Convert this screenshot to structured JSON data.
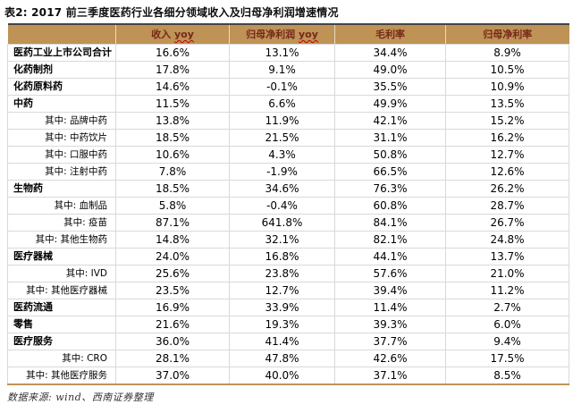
{
  "title": "表2: 2017 前三季度医药行业各细分领域收入及归母净利润增速情况",
  "footer": "数据来源: wind、西南证券整理",
  "colors": {
    "header_bg": "#BE9355",
    "header_text": "#76281A",
    "squiggle_underline": "#C00000",
    "grid_line": "#D9D9D9",
    "table_top_rule": "#454545",
    "table_bottom_rule": "#BF9355"
  },
  "table": {
    "headers": [
      {
        "text": "",
        "suffix": ""
      },
      {
        "text": "收入",
        "suffix": "yoy"
      },
      {
        "text": "归母净利润",
        "suffix": "yoy"
      },
      {
        "text": "毛利率",
        "suffix": ""
      },
      {
        "text": "归母净利率",
        "suffix": ""
      }
    ],
    "rows": [
      {
        "label": "医药工业上市公司合计",
        "sub": false,
        "values": [
          "16.6%",
          "13.1%",
          "34.4%",
          "8.9%"
        ]
      },
      {
        "label": "化药制剂",
        "sub": false,
        "values": [
          "17.8%",
          "9.1%",
          "49.0%",
          "10.5%"
        ]
      },
      {
        "label": "化药原料药",
        "sub": false,
        "values": [
          "14.6%",
          "-0.1%",
          "35.5%",
          "10.9%"
        ]
      },
      {
        "label": "中药",
        "sub": false,
        "values": [
          "11.5%",
          "6.6%",
          "49.9%",
          "13.5%"
        ]
      },
      {
        "label": "其中: 品牌中药",
        "sub": true,
        "values": [
          "13.8%",
          "11.9%",
          "42.1%",
          "15.2%"
        ]
      },
      {
        "label": "其中: 中药饮片",
        "sub": true,
        "values": [
          "18.5%",
          "21.5%",
          "31.1%",
          "16.2%"
        ]
      },
      {
        "label": "其中: 口服中药",
        "sub": true,
        "values": [
          "10.6%",
          "4.3%",
          "50.8%",
          "12.7%"
        ]
      },
      {
        "label": "其中: 注射中药",
        "sub": true,
        "values": [
          "7.8%",
          "-1.9%",
          "66.5%",
          "12.6%"
        ]
      },
      {
        "label": "生物药",
        "sub": false,
        "values": [
          "18.5%",
          "34.6%",
          "76.3%",
          "26.2%"
        ]
      },
      {
        "label": "其中: 血制品",
        "sub": true,
        "values": [
          "5.8%",
          "-0.4%",
          "60.8%",
          "28.7%"
        ]
      },
      {
        "label": "其中: 疫苗",
        "sub": true,
        "values": [
          "87.1%",
          "641.8%",
          "84.1%",
          "26.7%"
        ]
      },
      {
        "label": "其中: 其他生物药",
        "sub": true,
        "values": [
          "14.8%",
          "32.1%",
          "82.1%",
          "24.8%"
        ]
      },
      {
        "label": "医疗器械",
        "sub": false,
        "values": [
          "24.0%",
          "16.8%",
          "44.1%",
          "13.7%"
        ]
      },
      {
        "label": "其中: IVD",
        "sub": true,
        "values": [
          "25.6%",
          "23.8%",
          "57.6%",
          "21.0%"
        ]
      },
      {
        "label": "其中: 其他医疗器械",
        "sub": true,
        "values": [
          "23.5%",
          "12.7%",
          "39.4%",
          "11.2%"
        ]
      },
      {
        "label": "医药流通",
        "sub": false,
        "values": [
          "16.9%",
          "33.9%",
          "11.4%",
          "2.7%"
        ]
      },
      {
        "label": "零售",
        "sub": false,
        "values": [
          "21.6%",
          "19.3%",
          "39.3%",
          "6.0%"
        ]
      },
      {
        "label": "医疗服务",
        "sub": false,
        "values": [
          "36.0%",
          "41.4%",
          "37.7%",
          "9.4%"
        ]
      },
      {
        "label": "其中: CRO",
        "sub": true,
        "values": [
          "28.1%",
          "47.8%",
          "42.6%",
          "17.5%"
        ]
      },
      {
        "label": "其中: 其他医疗服务",
        "sub": true,
        "values": [
          "37.0%",
          "40.0%",
          "37.1%",
          "8.5%"
        ]
      }
    ]
  }
}
